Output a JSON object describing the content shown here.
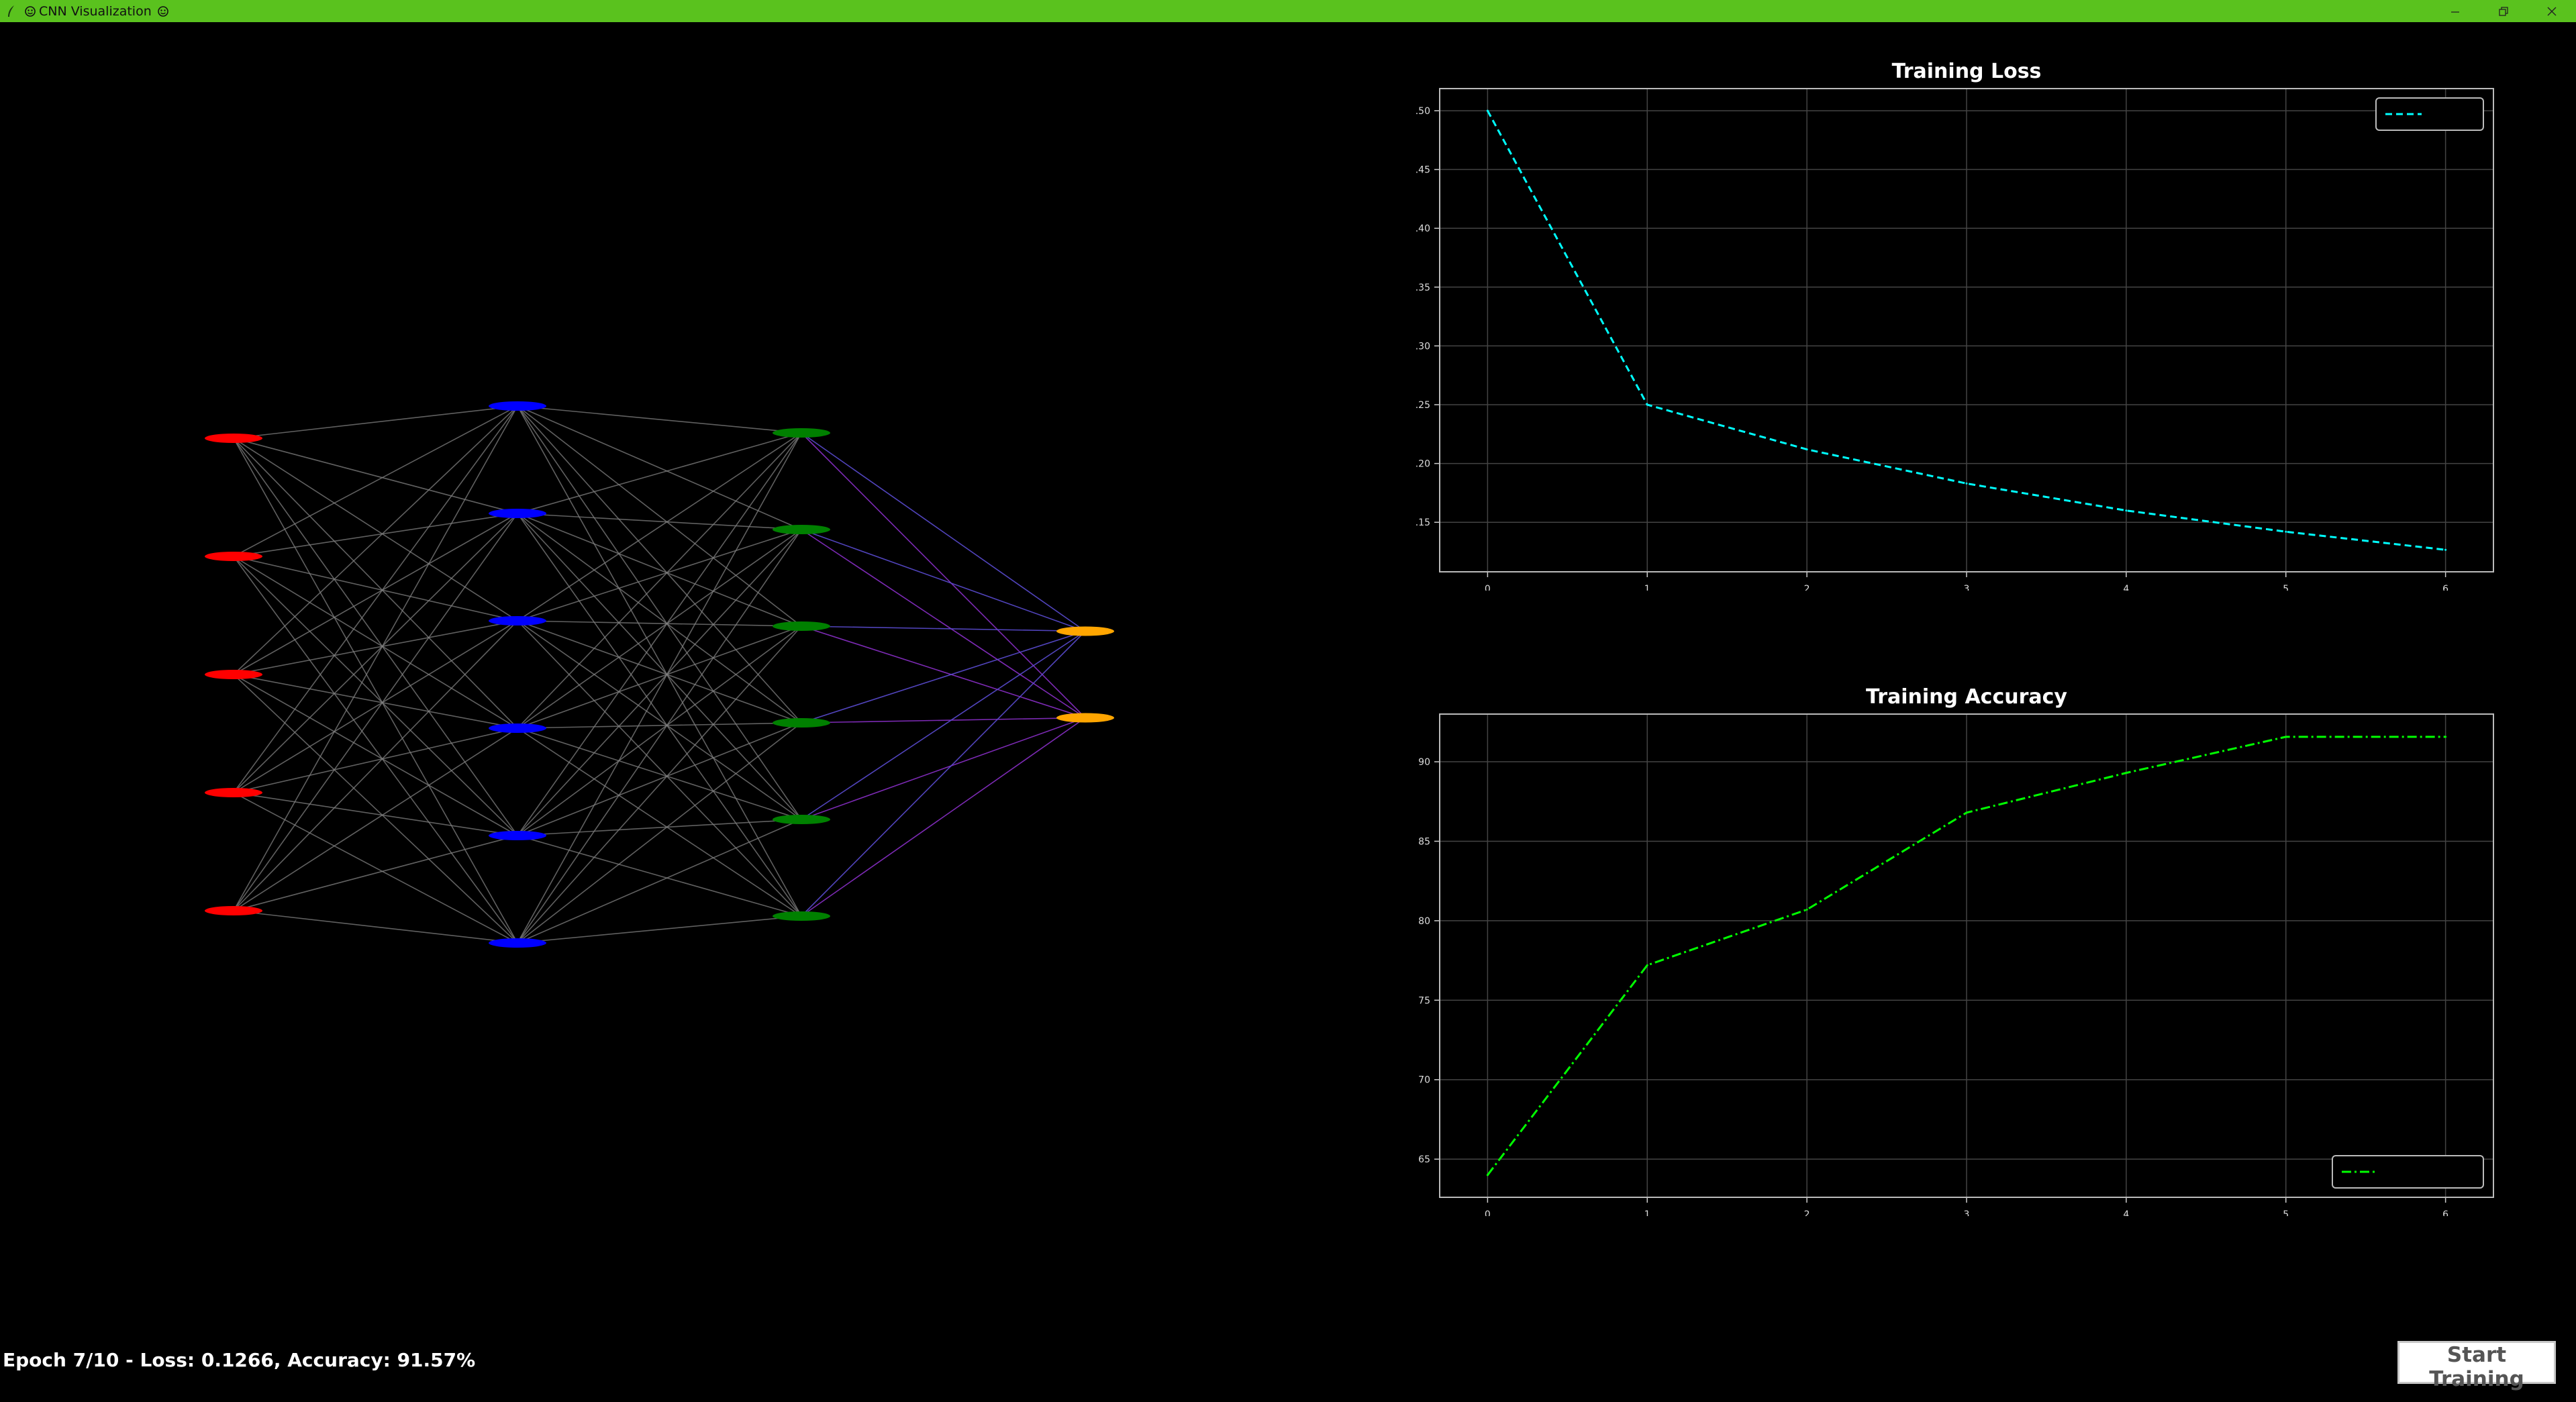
{
  "window": {
    "title": "CNN Visualization",
    "controls": [
      "minimize-icon",
      "restore-icon",
      "close-icon"
    ]
  },
  "network": {
    "layers": [
      {
        "name": "input",
        "nodes": 5,
        "color": "#ff0000"
      },
      {
        "name": "hidden1",
        "nodes": 6,
        "color": "#0000ff"
      },
      {
        "name": "hidden2",
        "nodes": 6,
        "color": "#008000"
      },
      {
        "name": "output",
        "nodes": 2,
        "color": "#ffa500"
      }
    ],
    "connection_color": "#808080",
    "output_connection_colors": [
      "#5a4bd0",
      "#8a2fc8"
    ]
  },
  "chart_data": [
    {
      "type": "line",
      "title": "Training Loss",
      "x": [
        0,
        1,
        2,
        3,
        4,
        5,
        6
      ],
      "series": [
        {
          "values": [
            0.5,
            0.25,
            0.212,
            0.183,
            0.16,
            0.142,
            0.1266
          ],
          "color": "#00ffff",
          "linestyle": "dashed"
        }
      ],
      "xticks": [
        "0",
        "1",
        "2",
        "3",
        "4",
        "5",
        "6"
      ],
      "yticks": [
        "0.15",
        "0.20",
        "0.25",
        "0.30",
        "0.35",
        "0.40",
        "0.45",
        "0.50"
      ],
      "xlim": [
        -0.3,
        6.3
      ],
      "ylim": [
        0.1079,
        0.5188
      ],
      "grid": true,
      "legend": "top-right"
    },
    {
      "type": "line",
      "title": "Training Accuracy",
      "x": [
        0,
        1,
        2,
        3,
        4,
        5,
        6
      ],
      "series": [
        {
          "values": [
            64.0,
            77.2,
            80.7,
            86.8,
            89.3,
            91.57,
            91.57
          ],
          "color": "#00ff00",
          "linestyle": "dashdot"
        }
      ],
      "xticks": [
        "0",
        "1",
        "2",
        "3",
        "4",
        "5",
        "6"
      ],
      "yticks": [
        "65",
        "70",
        "75",
        "80",
        "85",
        "90"
      ],
      "xlim": [
        -0.3,
        6.3
      ],
      "ylim": [
        62.6,
        93.0
      ],
      "grid": true,
      "legend": "bottom-right"
    }
  ],
  "status": {
    "text": "Epoch 7/10 - Loss: 0.1266, Accuracy: 91.57%"
  },
  "controls": {
    "start_label": "Start Training"
  }
}
